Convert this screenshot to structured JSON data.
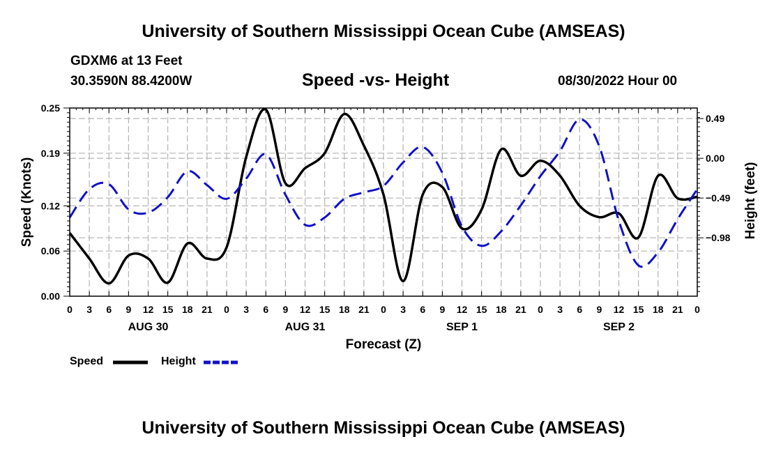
{
  "header": {
    "title": "University of Southern Mississippi Ocean Cube (AMSEAS)",
    "station": "GDXM6 at 13 Feet",
    "coords": "30.3590N  88.4200W",
    "subtitle": "Speed -vs- Height",
    "datetime": "08/30/2022 Hour 00"
  },
  "footer": {
    "title": "University of Southern Mississippi Ocean Cube (AMSEAS)"
  },
  "legend": {
    "speed_label": "Speed",
    "height_label": "Height"
  },
  "colors": {
    "speed": "#000000",
    "height": "#1010c8",
    "grid": "#b4b4b4"
  },
  "chart_data": {
    "type": "line",
    "title": "Speed -vs- Height",
    "xlabel": "Forecast (Z)",
    "ylabel": "Speed (Knots)",
    "y2label": "Height (feet)",
    "xlim": [
      0,
      96
    ],
    "ylim": [
      0,
      0.25
    ],
    "y2lim": [
      -1.7,
      0.62
    ],
    "x_tick_step_hours": 3,
    "x_tick_labels": [
      "0",
      "3",
      "6",
      "9",
      "12",
      "15",
      "18",
      "21",
      "0",
      "3",
      "6",
      "9",
      "12",
      "15",
      "18",
      "21",
      "0",
      "3",
      "6",
      "9",
      "12",
      "15",
      "18",
      "21",
      "0",
      "3",
      "6",
      "9",
      "12",
      "15",
      "18",
      "21",
      "0"
    ],
    "day_labels": [
      {
        "label": "AUG 30",
        "hour": 12
      },
      {
        "label": "AUG 31",
        "hour": 36
      },
      {
        "label": "SEP 1",
        "hour": 60
      },
      {
        "label": "SEP 2",
        "hour": 84
      }
    ],
    "y_ticks": [
      0.0,
      0.06,
      0.12,
      0.19,
      0.25
    ],
    "y_tick_labels": [
      "0.00",
      "0.06",
      "0.12",
      "0.19",
      "0.25"
    ],
    "y2_ticks": [
      0.49,
      0.0,
      -0.49,
      -0.98
    ],
    "y2_tick_labels": [
      "0.49",
      "0.00",
      "−0.49",
      "−0.98"
    ],
    "grid": true,
    "series": [
      {
        "name": "Speed",
        "axis": "left",
        "style": "solid",
        "x": [
          0,
          3,
          6,
          9,
          12,
          15,
          18,
          21,
          24,
          27,
          30,
          33,
          36,
          39,
          42,
          45,
          48,
          51,
          54,
          57,
          60,
          63,
          66,
          69,
          72,
          75,
          78,
          81,
          84,
          87,
          90,
          93,
          96
        ],
        "values": [
          0.084,
          0.05,
          0.017,
          0.054,
          0.05,
          0.018,
          0.07,
          0.05,
          0.065,
          0.185,
          0.248,
          0.15,
          0.17,
          0.19,
          0.242,
          0.2,
          0.135,
          0.02,
          0.135,
          0.145,
          0.09,
          0.115,
          0.195,
          0.16,
          0.18,
          0.16,
          0.12,
          0.105,
          0.11,
          0.078,
          0.16,
          0.13,
          0.132
        ]
      },
      {
        "name": "Height",
        "axis": "right",
        "style": "dashed",
        "x": [
          0,
          3,
          6,
          9,
          12,
          15,
          18,
          21,
          24,
          27,
          30,
          33,
          36,
          39,
          42,
          45,
          48,
          51,
          54,
          57,
          60,
          63,
          66,
          69,
          72,
          75,
          78,
          81,
          84,
          87,
          90,
          93,
          96
        ],
        "values": [
          -0.73,
          -0.38,
          -0.32,
          -0.63,
          -0.67,
          -0.48,
          -0.16,
          -0.33,
          -0.5,
          -0.25,
          0.05,
          -0.45,
          -0.82,
          -0.73,
          -0.5,
          -0.42,
          -0.34,
          -0.05,
          0.14,
          -0.18,
          -0.84,
          -1.08,
          -0.9,
          -0.58,
          -0.22,
          0.09,
          0.48,
          0.15,
          -0.77,
          -1.32,
          -1.16,
          -0.75,
          -0.38
        ]
      }
    ]
  }
}
